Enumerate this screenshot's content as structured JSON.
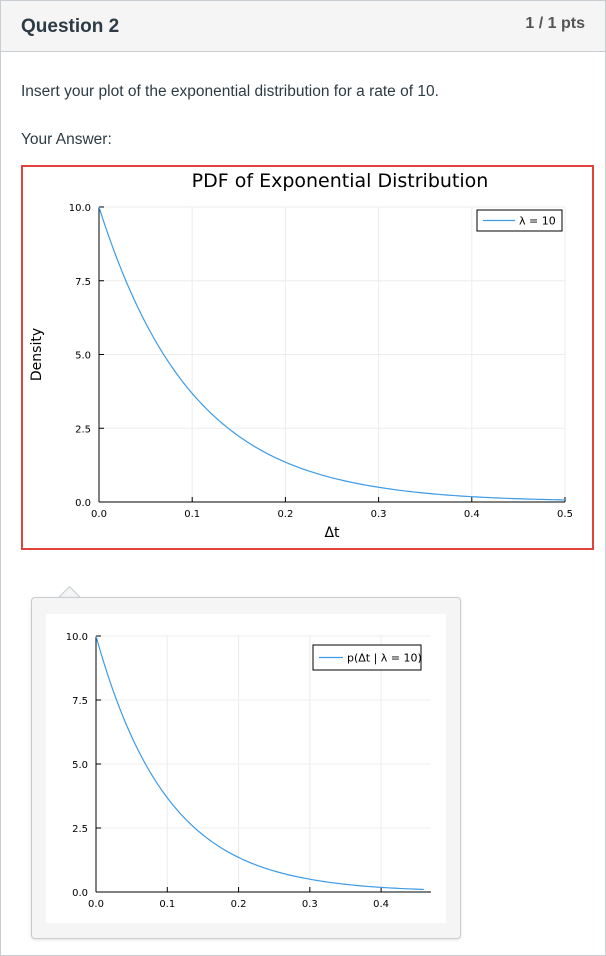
{
  "question": {
    "title": "Question 2",
    "points": "1 / 1 pts",
    "prompt": "Insert your plot of the exponential distribution for a rate of 10.",
    "answer_label": "Your Answer:"
  },
  "colors": {
    "accent_border": "#e0423c",
    "series": "#3d9be6"
  },
  "chart_data": [
    {
      "type": "line",
      "title": "PDF of Exponential Distribution",
      "xlabel": "Δt",
      "ylabel": "Density",
      "xlim": [
        0.0,
        0.5
      ],
      "ylim": [
        0.0,
        10.0
      ],
      "xticks": [
        "0.0",
        "0.1",
        "0.2",
        "0.3",
        "0.4",
        "0.5"
      ],
      "yticks": [
        "0.0",
        "2.5",
        "5.0",
        "7.5",
        "10.0"
      ],
      "grid": true,
      "legend_position": "top-right",
      "series": [
        {
          "name": "λ = 10",
          "x": [
            0.0,
            0.05,
            0.1,
            0.15,
            0.2,
            0.25,
            0.3,
            0.35,
            0.4,
            0.45,
            0.5
          ],
          "y": [
            10.0,
            6.07,
            3.68,
            2.23,
            1.35,
            0.82,
            0.5,
            0.3,
            0.18,
            0.11,
            0.07
          ]
        }
      ]
    },
    {
      "type": "line",
      "title": "",
      "xlabel": "",
      "ylabel": "",
      "xlim": [
        0.0,
        0.47
      ],
      "ylim": [
        0.0,
        10.0
      ],
      "xticks": [
        "0.0",
        "0.1",
        "0.2",
        "0.3",
        "0.4"
      ],
      "yticks": [
        "0.0",
        "2.5",
        "5.0",
        "7.5",
        "10.0"
      ],
      "grid": true,
      "legend_position": "top-right",
      "series": [
        {
          "name": "p(Δt | λ = 10)",
          "x": [
            0.0,
            0.05,
            0.1,
            0.15,
            0.2,
            0.25,
            0.3,
            0.35,
            0.4,
            0.45,
            0.46
          ],
          "y": [
            10.0,
            6.07,
            3.68,
            2.23,
            1.35,
            0.82,
            0.5,
            0.3,
            0.18,
            0.11,
            0.1
          ]
        }
      ]
    }
  ]
}
